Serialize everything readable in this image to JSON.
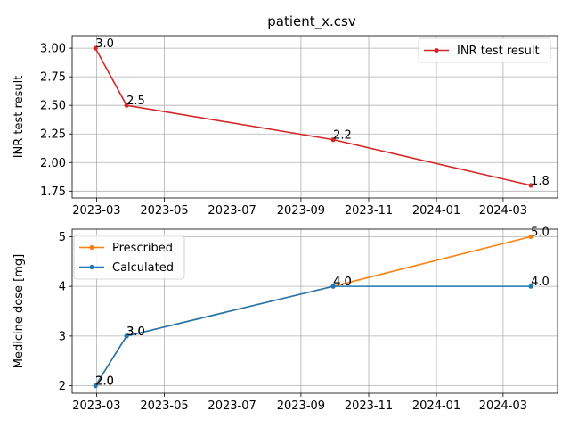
{
  "colors": {
    "inr": "#d62728",
    "prescribed": "#ff7f0e",
    "calculated": "#1f77b4",
    "grid": "#b0b0b0",
    "axis": "#000000"
  },
  "chart_data": [
    {
      "type": "line",
      "title": "patient_x.csv",
      "xlabel": "",
      "ylabel": "INR test result",
      "xlim": [
        "2023-02-07",
        "2024-04-19"
      ],
      "ylim": [
        1.69,
        3.11
      ],
      "x_ticks": [
        "2023-03-01",
        "2023-05-01",
        "2023-07-01",
        "2023-09-01",
        "2023-11-01",
        "2024-01-01",
        "2024-03-01"
      ],
      "x_tick_labels": [
        "2023-03",
        "2023-05",
        "2023-07",
        "2023-09",
        "2023-11",
        "2024-01",
        "2024-03"
      ],
      "y_ticks": [
        1.75,
        2.0,
        2.25,
        2.5,
        2.75,
        3.0
      ],
      "y_tick_labels": [
        "1.75",
        "2.00",
        "2.25",
        "2.50",
        "2.75",
        "3.00"
      ],
      "grid": true,
      "legend_position": "top-right",
      "series": [
        {
          "name": "INR test result",
          "color": "#d62728",
          "x": [
            "2023-02-28",
            "2023-03-28",
            "2023-09-30",
            "2024-03-26"
          ],
          "values": [
            3.0,
            2.5,
            2.2,
            1.8
          ],
          "labels": [
            "3.0",
            "2.5",
            "2.2",
            "1.8"
          ]
        }
      ]
    },
    {
      "type": "line",
      "title": "",
      "xlabel": "",
      "ylabel": "Medicine dose [mg]",
      "xlim": [
        "2023-02-07",
        "2024-04-19"
      ],
      "ylim": [
        1.85,
        5.15
      ],
      "x_ticks": [
        "2023-03-01",
        "2023-05-01",
        "2023-07-01",
        "2023-09-01",
        "2023-11-01",
        "2024-01-01",
        "2024-03-01"
      ],
      "x_tick_labels": [
        "2023-03",
        "2023-05",
        "2023-07",
        "2023-09",
        "2023-11",
        "2024-01",
        "2024-03"
      ],
      "y_ticks": [
        2,
        3,
        4,
        5
      ],
      "y_tick_labels": [
        "2",
        "3",
        "4",
        "5"
      ],
      "grid": true,
      "legend_position": "top-left",
      "series": [
        {
          "name": "Prescribed",
          "color": "#ff7f0e",
          "x": [
            "2023-02-28",
            "2023-03-28",
            "2023-09-30",
            "2024-03-26"
          ],
          "values": [
            2.0,
            3.0,
            4.0,
            5.0
          ],
          "labels": [
            "2.0",
            "3.0",
            "4.0",
            "5.0"
          ]
        },
        {
          "name": "Calculated",
          "color": "#1f77b4",
          "x": [
            "2023-02-28",
            "2023-03-28",
            "2023-09-30",
            "2024-03-26"
          ],
          "values": [
            2.0,
            3.0,
            4.0,
            4.0
          ],
          "labels": [
            "2.0",
            "3.0",
            "4.0",
            "4.0"
          ]
        }
      ]
    }
  ]
}
